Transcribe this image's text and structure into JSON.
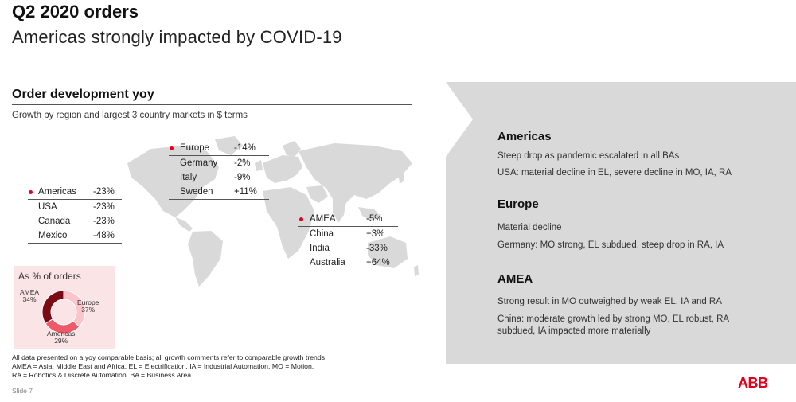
{
  "header": {
    "title": "Q2 2020 orders",
    "subtitle": "Americas strongly impacted by COVID-19"
  },
  "section": {
    "title": "Order development yoy",
    "description": "Growth by region and largest 3 country markets in $ terms"
  },
  "regions": {
    "europe": {
      "name": "Europe",
      "growth": "-14%",
      "countries": [
        {
          "name": "Germany",
          "growth": "-2%"
        },
        {
          "name": "Italy",
          "growth": "-9%"
        },
        {
          "name": "Sweden",
          "growth": "+11%"
        }
      ]
    },
    "americas": {
      "name": "Americas",
      "growth": "-23%",
      "countries": [
        {
          "name": "USA",
          "growth": "-23%"
        },
        {
          "name": "Canada",
          "growth": "-23%"
        },
        {
          "name": "Mexico",
          "growth": "-48%"
        }
      ]
    },
    "amea": {
      "name": "AMEA",
      "growth": "-5%",
      "countries": [
        {
          "name": "China",
          "growth": "+3%"
        },
        {
          "name": "India",
          "growth": "-33%"
        },
        {
          "name": "Australia",
          "growth": "+64%"
        }
      ]
    }
  },
  "orders_share": {
    "title": "As % of orders",
    "slices": [
      {
        "label": "AMEA",
        "value": "34%",
        "share": 34,
        "color": "#7a0a14"
      },
      {
        "label": "Europe",
        "value": "37%",
        "share": 37,
        "color": "#fbc6cb"
      },
      {
        "label": "Americas",
        "value": "29%",
        "share": 29,
        "color": "#ee5a6a"
      }
    ]
  },
  "footnote": {
    "line1": "All data presented on a yoy comparable basis; all growth comments refer to comparable growth trends",
    "line2": "AMEA = Asia, Middle East and Africa, EL = Electrification, IA = Industrial Automation, MO = Motion,",
    "line3": "RA = Robotics & Discrete Automation. BA = Business Area"
  },
  "slide_number": "Slide 7",
  "commentary": {
    "americas": {
      "heading": "Americas",
      "line1": "Steep drop as pandemic escalated in all BAs",
      "line2": "USA: material decline in EL, severe decline in MO, IA, RA"
    },
    "europe": {
      "heading": "Europe",
      "line1": "Material decline",
      "line2": "Germany: MO strong, EL subdued, steep drop in RA, IA"
    },
    "amea": {
      "heading": "AMEA",
      "line1": "Strong result in MO outweighed by weak EL, IA and RA",
      "line2": "China: moderate growth led by strong MO, EL robust, RA",
      "line3": "subdued, IA impacted more materially"
    }
  },
  "logo": "ABB",
  "colors": {
    "accent": "#e2001a",
    "panel": "#d9d9d9",
    "map": "#d9d9d9"
  }
}
